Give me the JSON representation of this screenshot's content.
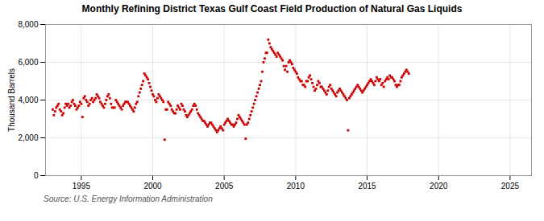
{
  "chart_data": {
    "type": "scatter",
    "title": "Monthly Refining District Texas Gulf Coast Field Production of Natural Gas Liquids",
    "ylabel": "Thousand Barrels",
    "source": "Source: U.S. Energy Information Administration",
    "color": "#cc0000",
    "marker": "square",
    "grid": true,
    "xlim": [
      1992.5,
      2026.5
    ],
    "xticks": [
      1995,
      2000,
      2005,
      2010,
      2015,
      2020,
      2025
    ],
    "ylim": [
      0,
      8000
    ],
    "yticks": [
      0,
      {
        "value": 2000,
        "label": "2,000"
      },
      {
        "value": 4000,
        "label": "4,000"
      },
      {
        "value": 6000,
        "label": "6,000"
      },
      {
        "value": 8000,
        "label": "8,000"
      }
    ],
    "x": [
      1993,
      1993.0833,
      1993.1667,
      1993.25,
      1993.3333,
      1993.4167,
      1993.5,
      1993.5833,
      1993.6667,
      1993.75,
      1993.8333,
      1993.9167,
      1994,
      1994.0833,
      1994.1667,
      1994.25,
      1994.3333,
      1994.4167,
      1994.5,
      1994.5833,
      1994.6667,
      1994.75,
      1994.8333,
      1994.9167,
      1995,
      1995.0833,
      1995.1667,
      1995.25,
      1995.3333,
      1995.4167,
      1995.5,
      1995.5833,
      1995.6667,
      1995.75,
      1995.8333,
      1995.9167,
      1996,
      1996.0833,
      1996.1667,
      1996.25,
      1996.3333,
      1996.4167,
      1996.5,
      1996.5833,
      1996.6667,
      1996.75,
      1996.8333,
      1996.9167,
      1997,
      1997.0833,
      1997.1667,
      1997.25,
      1997.3333,
      1997.4167,
      1997.5,
      1997.5833,
      1997.6667,
      1997.75,
      1997.8333,
      1997.9167,
      1998,
      1998.0833,
      1998.1667,
      1998.25,
      1998.3333,
      1998.4167,
      1998.5,
      1998.5833,
      1998.6667,
      1998.75,
      1998.8333,
      1998.9167,
      1999,
      1999.0833,
      1999.1667,
      1999.25,
      1999.3333,
      1999.4167,
      1999.5,
      1999.5833,
      1999.6667,
      1999.75,
      1999.8333,
      1999.9167,
      2000,
      2000.0833,
      2000.1667,
      2000.25,
      2000.3333,
      2000.4167,
      2000.5,
      2000.5833,
      2000.6667,
      2000.75,
      2000.8333,
      2000.9167,
      2001,
      2001.0833,
      2001.1667,
      2001.25,
      2001.3333,
      2001.4167,
      2001.5,
      2001.5833,
      2001.6667,
      2001.75,
      2001.8333,
      2001.9167,
      2002,
      2002.0833,
      2002.1667,
      2002.25,
      2002.3333,
      2002.4167,
      2002.5,
      2002.5833,
      2002.6667,
      2002.75,
      2002.8333,
      2002.9167,
      2003,
      2003.0833,
      2003.1667,
      2003.25,
      2003.3333,
      2003.4167,
      2003.5,
      2003.5833,
      2003.6667,
      2003.75,
      2003.8333,
      2003.9167,
      2004,
      2004.0833,
      2004.1667,
      2004.25,
      2004.3333,
      2004.4167,
      2004.5,
      2004.5833,
      2004.6667,
      2004.75,
      2004.8333,
      2004.9167,
      2005,
      2005.0833,
      2005.1667,
      2005.25,
      2005.3333,
      2005.4167,
      2005.5,
      2005.5833,
      2005.6667,
      2005.75,
      2005.8333,
      2005.9167,
      2006,
      2006.0833,
      2006.1667,
      2006.25,
      2006.3333,
      2006.4167,
      2006.5,
      2006.5833,
      2006.6667,
      2006.75,
      2006.8333,
      2006.9167,
      2007,
      2007.0833,
      2007.1667,
      2007.25,
      2007.3333,
      2007.4167,
      2007.5,
      2007.5833,
      2007.6667,
      2007.75,
      2007.8333,
      2007.9167,
      2008,
      2008.0833,
      2008.1667,
      2008.25,
      2008.3333,
      2008.4167,
      2008.5,
      2008.5833,
      2008.6667,
      2008.75,
      2008.8333,
      2008.9167,
      2009,
      2009.0833,
      2009.1667,
      2009.25,
      2009.3333,
      2009.4167,
      2009.5,
      2009.5833,
      2009.6667,
      2009.75,
      2009.8333,
      2009.9167,
      2010,
      2010.0833,
      2010.1667,
      2010.25,
      2010.3333,
      2010.4167,
      2010.5,
      2010.5833,
      2010.6667,
      2010.75,
      2010.8333,
      2010.9167,
      2011,
      2011.0833,
      2011.1667,
      2011.25,
      2011.3333,
      2011.4167,
      2011.5,
      2011.5833,
      2011.6667,
      2011.75,
      2011.8333,
      2011.9167,
      2012,
      2012.0833,
      2012.1667,
      2012.25,
      2012.3333,
      2012.4167,
      2012.5,
      2012.5833,
      2012.6667,
      2012.75,
      2012.8333,
      2012.9167,
      2013,
      2013.0833,
      2013.1667,
      2013.25,
      2013.3333,
      2013.4167,
      2013.5,
      2013.5833,
      2013.6667,
      2013.75,
      2013.8333,
      2013.9167,
      2014,
      2014.0833,
      2014.1667,
      2014.25,
      2014.3333,
      2014.4167,
      2014.5,
      2014.5833,
      2014.6667,
      2014.75,
      2014.8333,
      2014.9167,
      2015,
      2015.0833,
      2015.1667,
      2015.25,
      2015.3333,
      2015.4167,
      2015.5,
      2015.5833,
      2015.6667,
      2015.75,
      2015.8333,
      2015.9167,
      2016,
      2016.0833,
      2016.1667,
      2016.25,
      2016.3333,
      2016.4167,
      2016.5,
      2016.5833,
      2016.6667,
      2016.75,
      2016.8333,
      2016.9167,
      2017,
      2017.0833,
      2017.1667,
      2017.25,
      2017.3333,
      2017.4167,
      2017.5,
      2017.5833,
      2017.6667,
      2017.75,
      2017.8333,
      2017.9167
    ],
    "values": [
      3500,
      3200,
      3400,
      3600,
      3700,
      3800,
      3500,
      3400,
      3200,
      3300,
      3600,
      3800,
      3700,
      3800,
      3600,
      3700,
      3900,
      4000,
      3800,
      3700,
      3500,
      3600,
      3700,
      3900,
      3800,
      3100,
      4100,
      4200,
      4000,
      3900,
      3700,
      3800,
      4000,
      4100,
      3900,
      4000,
      4100,
      4300,
      4200,
      4100,
      3900,
      3800,
      3700,
      3600,
      3800,
      4000,
      4200,
      4300,
      4100,
      3800,
      3600,
      3600,
      3600,
      4000,
      3900,
      3800,
      3700,
      3600,
      3500,
      3700,
      3800,
      3900,
      3900,
      3900,
      3800,
      3700,
      3600,
      3500,
      3400,
      3600,
      3800,
      3900,
      4200,
      4400,
      4600,
      4800,
      5000,
      5400,
      5300,
      5200,
      5100,
      4900,
      4700,
      4500,
      4300,
      4200,
      4000,
      3900,
      4100,
      4300,
      4200,
      4100,
      4000,
      3900,
      1900,
      3500,
      3500,
      3900,
      3800,
      3700,
      3500,
      3400,
      3300,
      3300,
      3500,
      3700,
      3600,
      3500,
      3800,
      3700,
      3500,
      3400,
      3200,
      3100,
      3200,
      3300,
      3400,
      3500,
      3700,
      3800,
      3700,
      3500,
      3300,
      3200,
      3100,
      3000,
      2900,
      2900,
      2800,
      2700,
      2600,
      2700,
      2800,
      2800,
      2700,
      2600,
      2500,
      2400,
      2300,
      2400,
      2500,
      2600,
      2500,
      2400,
      2700,
      2800,
      2900,
      3000,
      2900,
      2800,
      2700,
      2700,
      2600,
      2700,
      2800,
      3000,
      3200,
      3100,
      3000,
      2900,
      2800,
      2700,
      1950,
      2700,
      2800,
      3000,
      3200,
      3400,
      3600,
      3800,
      4000,
      4200,
      4400,
      4600,
      4800,
      5000,
      5500,
      6000,
      6200,
      6500,
      6500,
      7200,
      7000,
      6800,
      6700,
      6600,
      6500,
      6400,
      6300,
      6500,
      6400,
      6300,
      6200,
      6100,
      5800,
      5600,
      5800,
      5500,
      6000,
      6100,
      6000,
      5900,
      5700,
      5600,
      5500,
      5400,
      5200,
      5100,
      5000,
      5000,
      4800,
      4800,
      4700,
      5000,
      5000,
      5200,
      5300,
      5100,
      4900,
      4700,
      4500,
      4600,
      4800,
      5000,
      4900,
      4700,
      4700,
      4600,
      4500,
      4400,
      4300,
      4500,
      4700,
      4800,
      4600,
      4500,
      4400,
      4300,
      4200,
      4400,
      4500,
      4600,
      4500,
      4400,
      4300,
      4200,
      4100,
      4000,
      2400,
      4100,
      4200,
      4300,
      4400,
      4500,
      4600,
      4700,
      4800,
      4700,
      4600,
      4500,
      4400,
      4500,
      4600,
      4700,
      4800,
      4900,
      5000,
      5100,
      5000,
      4900,
      4800,
      5000,
      5200,
      5100,
      5000,
      5100,
      4800,
      4900,
      4700,
      5000,
      5100,
      5200,
      5100,
      5300,
      5200,
      5200,
      5100,
      5000,
      4800,
      4700,
      4800,
      4800,
      5000,
      5200,
      5300,
      5400,
      5500,
      5600,
      5500,
      5400
    ]
  }
}
